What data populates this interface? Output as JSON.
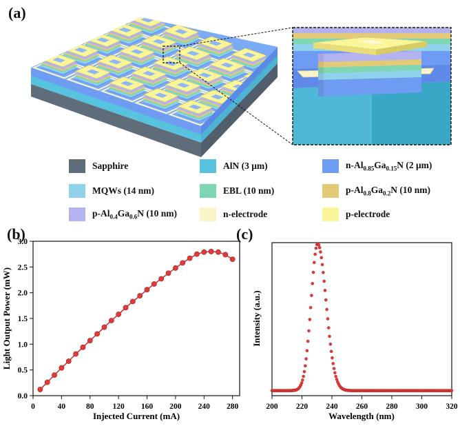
{
  "figure": {
    "label_a": "(a)",
    "label_b": "(b)",
    "label_c": "(c)"
  },
  "colors": {
    "sapphire": "#5f6d7a",
    "aln": "#58c3de",
    "n_algan": "#6e9cf2",
    "mqw": "#8fd2ea",
    "ebl": "#7fd6b2",
    "p_algan_08": "#e2ca78",
    "p_algan_04": "#b4b2ef",
    "n_electrode": "#fbf4c8",
    "p_electrode": "#fbf59a",
    "marker": "#e03a3a"
  },
  "legend": [
    {
      "key": "sapphire",
      "text": "Sapphire"
    },
    {
      "key": "aln",
      "text": "AlN (3 μm)"
    },
    {
      "key": "n_algan",
      "prefix": "n-Al",
      "s1": "0.85",
      "mid": "Ga",
      "s2": "0.15",
      "suffix": "N (2 μm)"
    },
    {
      "key": "mqw",
      "text": "MQWs (14 nm)"
    },
    {
      "key": "ebl",
      "text": "EBL (10 nm)"
    },
    {
      "key": "p_algan_08",
      "prefix": "p-Al",
      "s1": "0.8",
      "mid": "Ga",
      "s2": "0.2",
      "suffix": "N (10 nm)"
    },
    {
      "key": "p_algan_04",
      "prefix": "p-Al",
      "s1": "0.4",
      "mid": "Ga",
      "s2": "0.6",
      "suffix": "N (10 nm)"
    },
    {
      "key": "n_electrode",
      "text": "n-electrode"
    },
    {
      "key": "p_electrode",
      "text": "p-electrode"
    }
  ],
  "chart_data": [
    {
      "type": "line",
      "panel": "(b)",
      "xlabel": "Injected Current (mA)",
      "ylabel": "Light Output Power (mW)",
      "xlim": [
        0,
        290
      ],
      "ylim": [
        0,
        3.0
      ],
      "xticks": [
        0,
        40,
        80,
        120,
        160,
        200,
        240,
        280
      ],
      "yticks": [
        0.0,
        0.5,
        1.0,
        1.5,
        2.0,
        2.5,
        3.0
      ],
      "ytick_labels": [
        "0.0",
        "0.5",
        "1.0",
        "1.5",
        "2.0",
        "2.5",
        "3.0"
      ],
      "x": [
        10,
        20,
        30,
        40,
        50,
        60,
        70,
        80,
        90,
        100,
        110,
        120,
        130,
        140,
        150,
        160,
        170,
        180,
        190,
        200,
        210,
        220,
        230,
        240,
        250,
        260,
        270,
        280
      ],
      "y": [
        0.12,
        0.26,
        0.4,
        0.54,
        0.67,
        0.81,
        0.94,
        1.07,
        1.2,
        1.33,
        1.46,
        1.58,
        1.71,
        1.83,
        1.94,
        2.06,
        2.17,
        2.27,
        2.38,
        2.48,
        2.58,
        2.67,
        2.75,
        2.79,
        2.8,
        2.79,
        2.74,
        2.65
      ]
    },
    {
      "type": "scatter",
      "panel": "(c)",
      "xlabel": "Wavelength (nm)",
      "ylabel": "Intensity (a.u.)",
      "xlim": [
        200,
        320
      ],
      "ylim": [
        0,
        1.0
      ],
      "xticks": [
        200,
        220,
        240,
        260,
        280,
        300,
        320
      ],
      "peak_center": 230.5,
      "peak_sigma_left": 4.4,
      "peak_sigma_right": 5.6,
      "peak_height": 0.96,
      "baseline": 0.033,
      "x_start": 200,
      "x_end": 320,
      "x_step": 0.6
    }
  ]
}
